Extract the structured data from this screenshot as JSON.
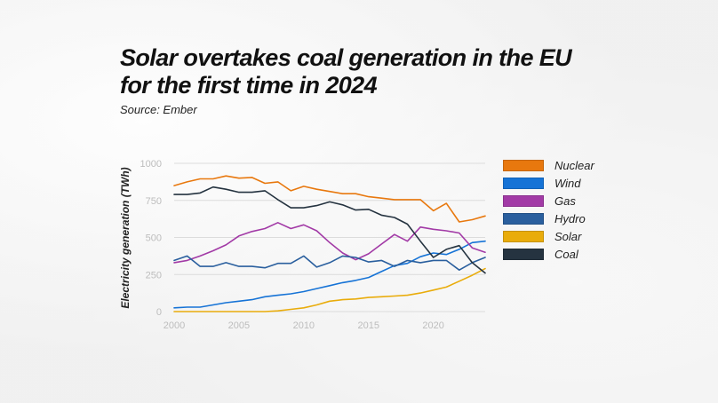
{
  "header": {
    "title": "Solar overtakes coal generation in the EU for the first time in 2024",
    "source": "Source: Ember"
  },
  "chart_data": {
    "type": "line",
    "title": "Solar overtakes coal generation in the EU for the first time in 2024",
    "xlabel": "",
    "ylabel": "Electricity generation (TWh)",
    "xlim": [
      2000,
      2024
    ],
    "ylim": [
      0,
      1000
    ],
    "x_ticks": [
      "2000",
      "2005",
      "2010",
      "2015",
      "2020"
    ],
    "y_ticks": [
      "0",
      "250",
      "500",
      "750",
      "1000"
    ],
    "grid": true,
    "legend_position": "right",
    "x": [
      2000,
      2001,
      2002,
      2003,
      2004,
      2005,
      2006,
      2007,
      2008,
      2009,
      2010,
      2011,
      2012,
      2013,
      2014,
      2015,
      2016,
      2017,
      2018,
      2019,
      2020,
      2021,
      2022,
      2023,
      2024
    ],
    "series": [
      {
        "name": "Nuclear",
        "color": "#e8780e",
        "values": [
          850,
          875,
          895,
          895,
          915,
          900,
          905,
          865,
          875,
          815,
          845,
          825,
          810,
          795,
          795,
          775,
          765,
          755,
          755,
          755,
          680,
          730,
          605,
          620,
          645
        ]
      },
      {
        "name": "Wind",
        "color": "#1673d6",
        "values": [
          25,
          30,
          30,
          45,
          60,
          70,
          80,
          100,
          110,
          120,
          135,
          155,
          175,
          195,
          210,
          230,
          270,
          310,
          325,
          370,
          395,
          385,
          420,
          465,
          475
        ]
      },
      {
        "name": "Gas",
        "color": "#a23aa6",
        "values": [
          330,
          345,
          375,
          410,
          450,
          510,
          540,
          560,
          600,
          560,
          585,
          545,
          465,
          395,
          350,
          390,
          455,
          520,
          475,
          570,
          555,
          545,
          530,
          430,
          400
        ]
      },
      {
        "name": "Hydro",
        "color": "#2a5f9e",
        "values": [
          345,
          375,
          305,
          305,
          330,
          305,
          305,
          295,
          325,
          325,
          375,
          300,
          330,
          375,
          365,
          335,
          345,
          305,
          345,
          330,
          345,
          345,
          280,
          330,
          365
        ]
      },
      {
        "name": "Solar",
        "color": "#e9ac0b",
        "values": [
          0,
          0,
          0,
          0,
          0,
          0,
          0,
          0,
          5,
          15,
          25,
          45,
          70,
          80,
          85,
          95,
          100,
          105,
          110,
          125,
          145,
          165,
          205,
          245,
          290
        ]
      },
      {
        "name": "Coal",
        "color": "#253340",
        "values": [
          790,
          790,
          800,
          840,
          825,
          805,
          805,
          815,
          755,
          700,
          700,
          715,
          740,
          720,
          685,
          690,
          650,
          635,
          590,
          475,
          365,
          420,
          445,
          330,
          260
        ]
      }
    ]
  }
}
